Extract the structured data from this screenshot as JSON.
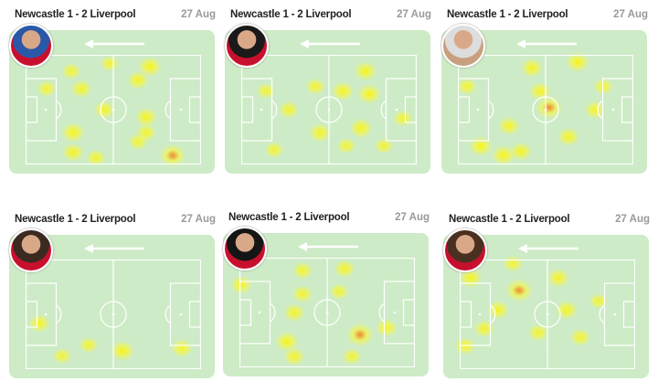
{
  "colors": {
    "pitch": "#cdebc6",
    "lines": "#ffffff",
    "heat_low": "#ffff30",
    "heat_high": "#f08020"
  },
  "direction": "left",
  "cards": [
    {
      "match": "Newcastle 1 - 2 Liverpool",
      "date": "27 Aug",
      "avatar_colors": [
        "#c8102e",
        "#2a58a8"
      ],
      "heat": [
        [
          71,
          11,
          1
        ],
        [
          64,
          23,
          0.8
        ],
        [
          26,
          15,
          0.5
        ],
        [
          32,
          31,
          0.7
        ],
        [
          12,
          31,
          0.5
        ],
        [
          45,
          50,
          0.7
        ],
        [
          27,
          71,
          1
        ],
        [
          69,
          57,
          0.8
        ],
        [
          69,
          71,
          0.6
        ],
        [
          84,
          92,
          1.3
        ],
        [
          27,
          89,
          0.8
        ],
        [
          40,
          94,
          0.6
        ],
        [
          48,
          8,
          0.5
        ],
        [
          64,
          79,
          0.5
        ]
      ]
    },
    {
      "match": "Newcastle 1 - 2 Liverpool",
      "date": "27 Aug",
      "avatar_colors": [
        "#c8102e",
        "#1a1a1a"
      ],
      "heat": [
        [
          71,
          15,
          0.9
        ],
        [
          73,
          36,
          1
        ],
        [
          58,
          33,
          0.9
        ],
        [
          42,
          29,
          0.6
        ],
        [
          68,
          67,
          0.9
        ],
        [
          45,
          71,
          0.8
        ],
        [
          27,
          50,
          0.6
        ],
        [
          14,
          33,
          0.5
        ],
        [
          92,
          58,
          0.6
        ],
        [
          60,
          83,
          0.5
        ],
        [
          19,
          87,
          0.5
        ],
        [
          81,
          83,
          0.5
        ]
      ]
    },
    {
      "match": "Newcastle 1 - 2 Liverpool",
      "date": "27 Aug",
      "avatar_colors": [
        "#c8a080",
        "#dddddd"
      ],
      "heat": [
        [
          52,
          48,
          1.4
        ],
        [
          68,
          7,
          1
        ],
        [
          42,
          12,
          0.8
        ],
        [
          47,
          33,
          0.8
        ],
        [
          29,
          65,
          0.8
        ],
        [
          13,
          83,
          1
        ],
        [
          26,
          92,
          1
        ],
        [
          63,
          75,
          0.8
        ],
        [
          78,
          50,
          0.7
        ],
        [
          5,
          29,
          0.6
        ],
        [
          83,
          29,
          0.6
        ],
        [
          36,
          88,
          0.8
        ]
      ]
    },
    {
      "match": "Newcastle 1 - 2 Liverpool",
      "date": "27 Aug",
      "avatar_colors": [
        "#c8102e",
        "#3a2a20"
      ],
      "heat": [
        [
          8,
          58,
          0.8
        ],
        [
          55,
          83,
          1
        ],
        [
          89,
          81,
          0.7
        ],
        [
          21,
          88,
          0.5
        ],
        [
          36,
          78,
          0.5
        ]
      ]
    },
    {
      "match": "Newcastle 1 - 2 Liverpool",
      "date": "27 Aug",
      "avatar_colors": [
        "#c8102e",
        "#151515"
      ],
      "heat": [
        [
          69,
          70,
          1.4
        ],
        [
          1,
          25,
          0.8
        ],
        [
          36,
          12,
          0.6
        ],
        [
          60,
          10,
          0.7
        ],
        [
          31,
          50,
          0.7
        ],
        [
          27,
          77,
          1
        ],
        [
          31,
          90,
          0.7
        ],
        [
          84,
          64,
          0.8
        ],
        [
          57,
          31,
          0.5
        ],
        [
          64,
          90,
          0.5
        ],
        [
          36,
          33,
          0.7
        ]
      ]
    },
    {
      "match": "Newcastle 1 - 2 Liverpool",
      "date": "27 Aug",
      "avatar_colors": [
        "#c8102e",
        "#4a3020"
      ],
      "heat": [
        [
          34,
          28,
          1.4
        ],
        [
          6,
          17,
          0.9
        ],
        [
          22,
          46,
          0.8
        ],
        [
          56,
          17,
          0.8
        ],
        [
          61,
          46,
          0.8
        ],
        [
          14,
          63,
          0.7
        ],
        [
          3,
          79,
          0.7
        ],
        [
          45,
          67,
          0.6
        ],
        [
          30,
          4,
          0.6
        ],
        [
          79,
          38,
          0.5
        ],
        [
          69,
          71,
          0.6
        ]
      ]
    }
  ]
}
